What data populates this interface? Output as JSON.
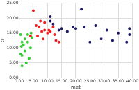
{
  "chart_data": {
    "type": "scatter",
    "x_label": "met",
    "y_label": "tr",
    "series": [
      {
        "color": "#33cc33",
        "marker": "circle",
        "x": [
          0.5,
          1,
          1.5,
          0.5,
          1,
          2,
          3,
          2.5,
          3.5,
          4,
          1,
          2,
          4.5,
          3,
          0.8,
          4.2
        ],
        "values": [
          14.5,
          12,
          11,
          8,
          7.5,
          9,
          12,
          5,
          6.5,
          10,
          4,
          13,
          13.5,
          14.5,
          10.5,
          15
        ]
      },
      {
        "color": "#ee2222",
        "marker": "circle",
        "x": [
          5,
          6,
          7,
          8,
          9,
          10,
          11,
          12,
          13,
          14,
          7.5,
          9,
          6.5,
          10.5,
          12.5,
          4,
          8.5
        ],
        "values": [
          22.5,
          17.5,
          17,
          15.5,
          16,
          15,
          15.5,
          17,
          12.5,
          12,
          19,
          18.5,
          14,
          16,
          14.5,
          14,
          13
        ]
      },
      {
        "color": "#1a1a66",
        "marker": "circle",
        "x": [
          11,
          11,
          12,
          14,
          15,
          17,
          19,
          20,
          22,
          23,
          25,
          27,
          29,
          31,
          33,
          35,
          39,
          39,
          38
        ],
        "values": [
          19,
          20.5,
          18,
          16,
          16.5,
          15.5,
          17,
          16.5,
          23,
          17,
          12,
          17.5,
          13,
          16,
          12.5,
          15,
          16.5,
          14.5,
          12
        ]
      }
    ],
    "xlim": [
      0,
      40
    ],
    "xticks": [
      {
        "value": 0,
        "label": "0.00"
      },
      {
        "value": 5,
        "label": "5.00"
      },
      {
        "value": 10,
        "label": "10.00"
      },
      {
        "value": 15,
        "label": "15.00"
      },
      {
        "value": 20,
        "label": "20.00"
      },
      {
        "value": 25,
        "label": "25.00"
      },
      {
        "value": 30,
        "label": "30.00"
      },
      {
        "value": 35,
        "label": "35.00"
      },
      {
        "value": 40,
        "label": "40.00"
      }
    ],
    "ylim": [
      0,
      25
    ],
    "yticks": [
      {
        "value": 0,
        "label": "0.00"
      },
      {
        "value": 5,
        "label": "5.00"
      },
      {
        "value": 10,
        "label": "10.00"
      },
      {
        "value": 15,
        "label": "15.00"
      },
      {
        "value": 20,
        "label": "20.00"
      },
      {
        "value": 25,
        "label": "25.00"
      }
    ],
    "grid": true
  }
}
